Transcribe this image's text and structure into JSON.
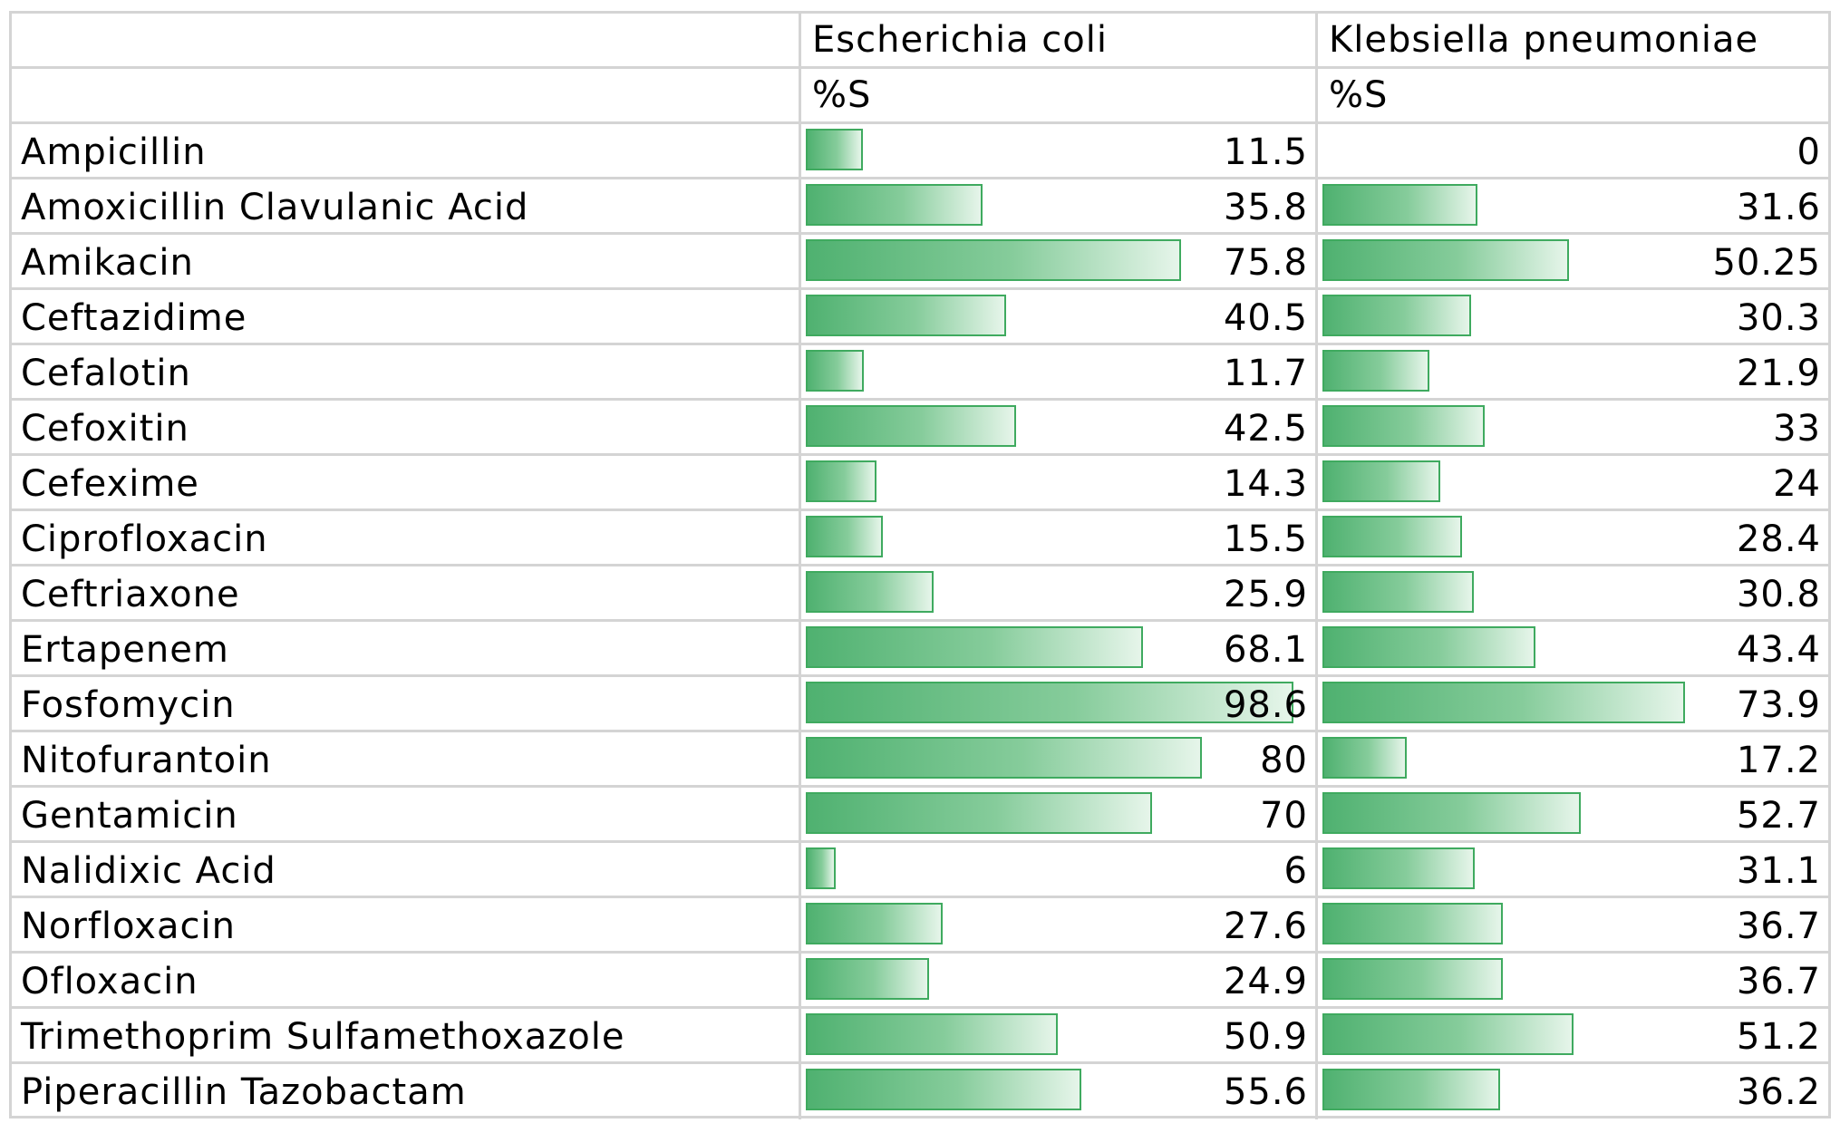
{
  "chart_data": {
    "type": "table",
    "columns": [
      "Escherichia coli",
      "Klebsiella pneumoniae"
    ],
    "subheaders": [
      "%S",
      "%S"
    ],
    "bar_max": 100,
    "bar_color": "#4fb170",
    "rows": [
      {
        "antibiotic": "Ampicillin",
        "values": [
          "11.5",
          "0"
        ]
      },
      {
        "antibiotic": "Amoxicillin Clavulanic Acid",
        "values": [
          "35.8",
          "31.6"
        ]
      },
      {
        "antibiotic": "Amikacin",
        "values": [
          "75.8",
          "50.25"
        ]
      },
      {
        "antibiotic": "Ceftazidime",
        "values": [
          "40.5",
          "30.3"
        ]
      },
      {
        "antibiotic": "Cefalotin",
        "values": [
          "11.7",
          "21.9"
        ]
      },
      {
        "antibiotic": "Cefoxitin",
        "values": [
          "42.5",
          "33"
        ]
      },
      {
        "antibiotic": "Cefexime",
        "values": [
          "14.3",
          "24"
        ]
      },
      {
        "antibiotic": "Ciprofloxacin",
        "values": [
          "15.5",
          "28.4"
        ]
      },
      {
        "antibiotic": "Ceftriaxone",
        "values": [
          "25.9",
          "30.8"
        ]
      },
      {
        "antibiotic": "Ertapenem",
        "values": [
          "68.1",
          "43.4"
        ]
      },
      {
        "antibiotic": "Fosfomycin",
        "values": [
          "98.6",
          "73.9"
        ]
      },
      {
        "antibiotic": "Nitofurantoin",
        "values": [
          "80",
          "17.2"
        ]
      },
      {
        "antibiotic": "Gentamicin",
        "values": [
          "70",
          "52.7"
        ]
      },
      {
        "antibiotic": "Nalidixic Acid",
        "values": [
          "6",
          "31.1"
        ]
      },
      {
        "antibiotic": "Norfloxacin",
        "values": [
          "27.6",
          "36.7"
        ]
      },
      {
        "antibiotic": "Ofloxacin",
        "values": [
          "24.9",
          "36.7"
        ]
      },
      {
        "antibiotic": "Trimethoprim Sulfamethoxazole",
        "values": [
          "50.9",
          "51.2"
        ]
      },
      {
        "antibiotic": "Piperacillin Tazobactam",
        "values": [
          "55.6",
          "36.2"
        ]
      }
    ]
  }
}
